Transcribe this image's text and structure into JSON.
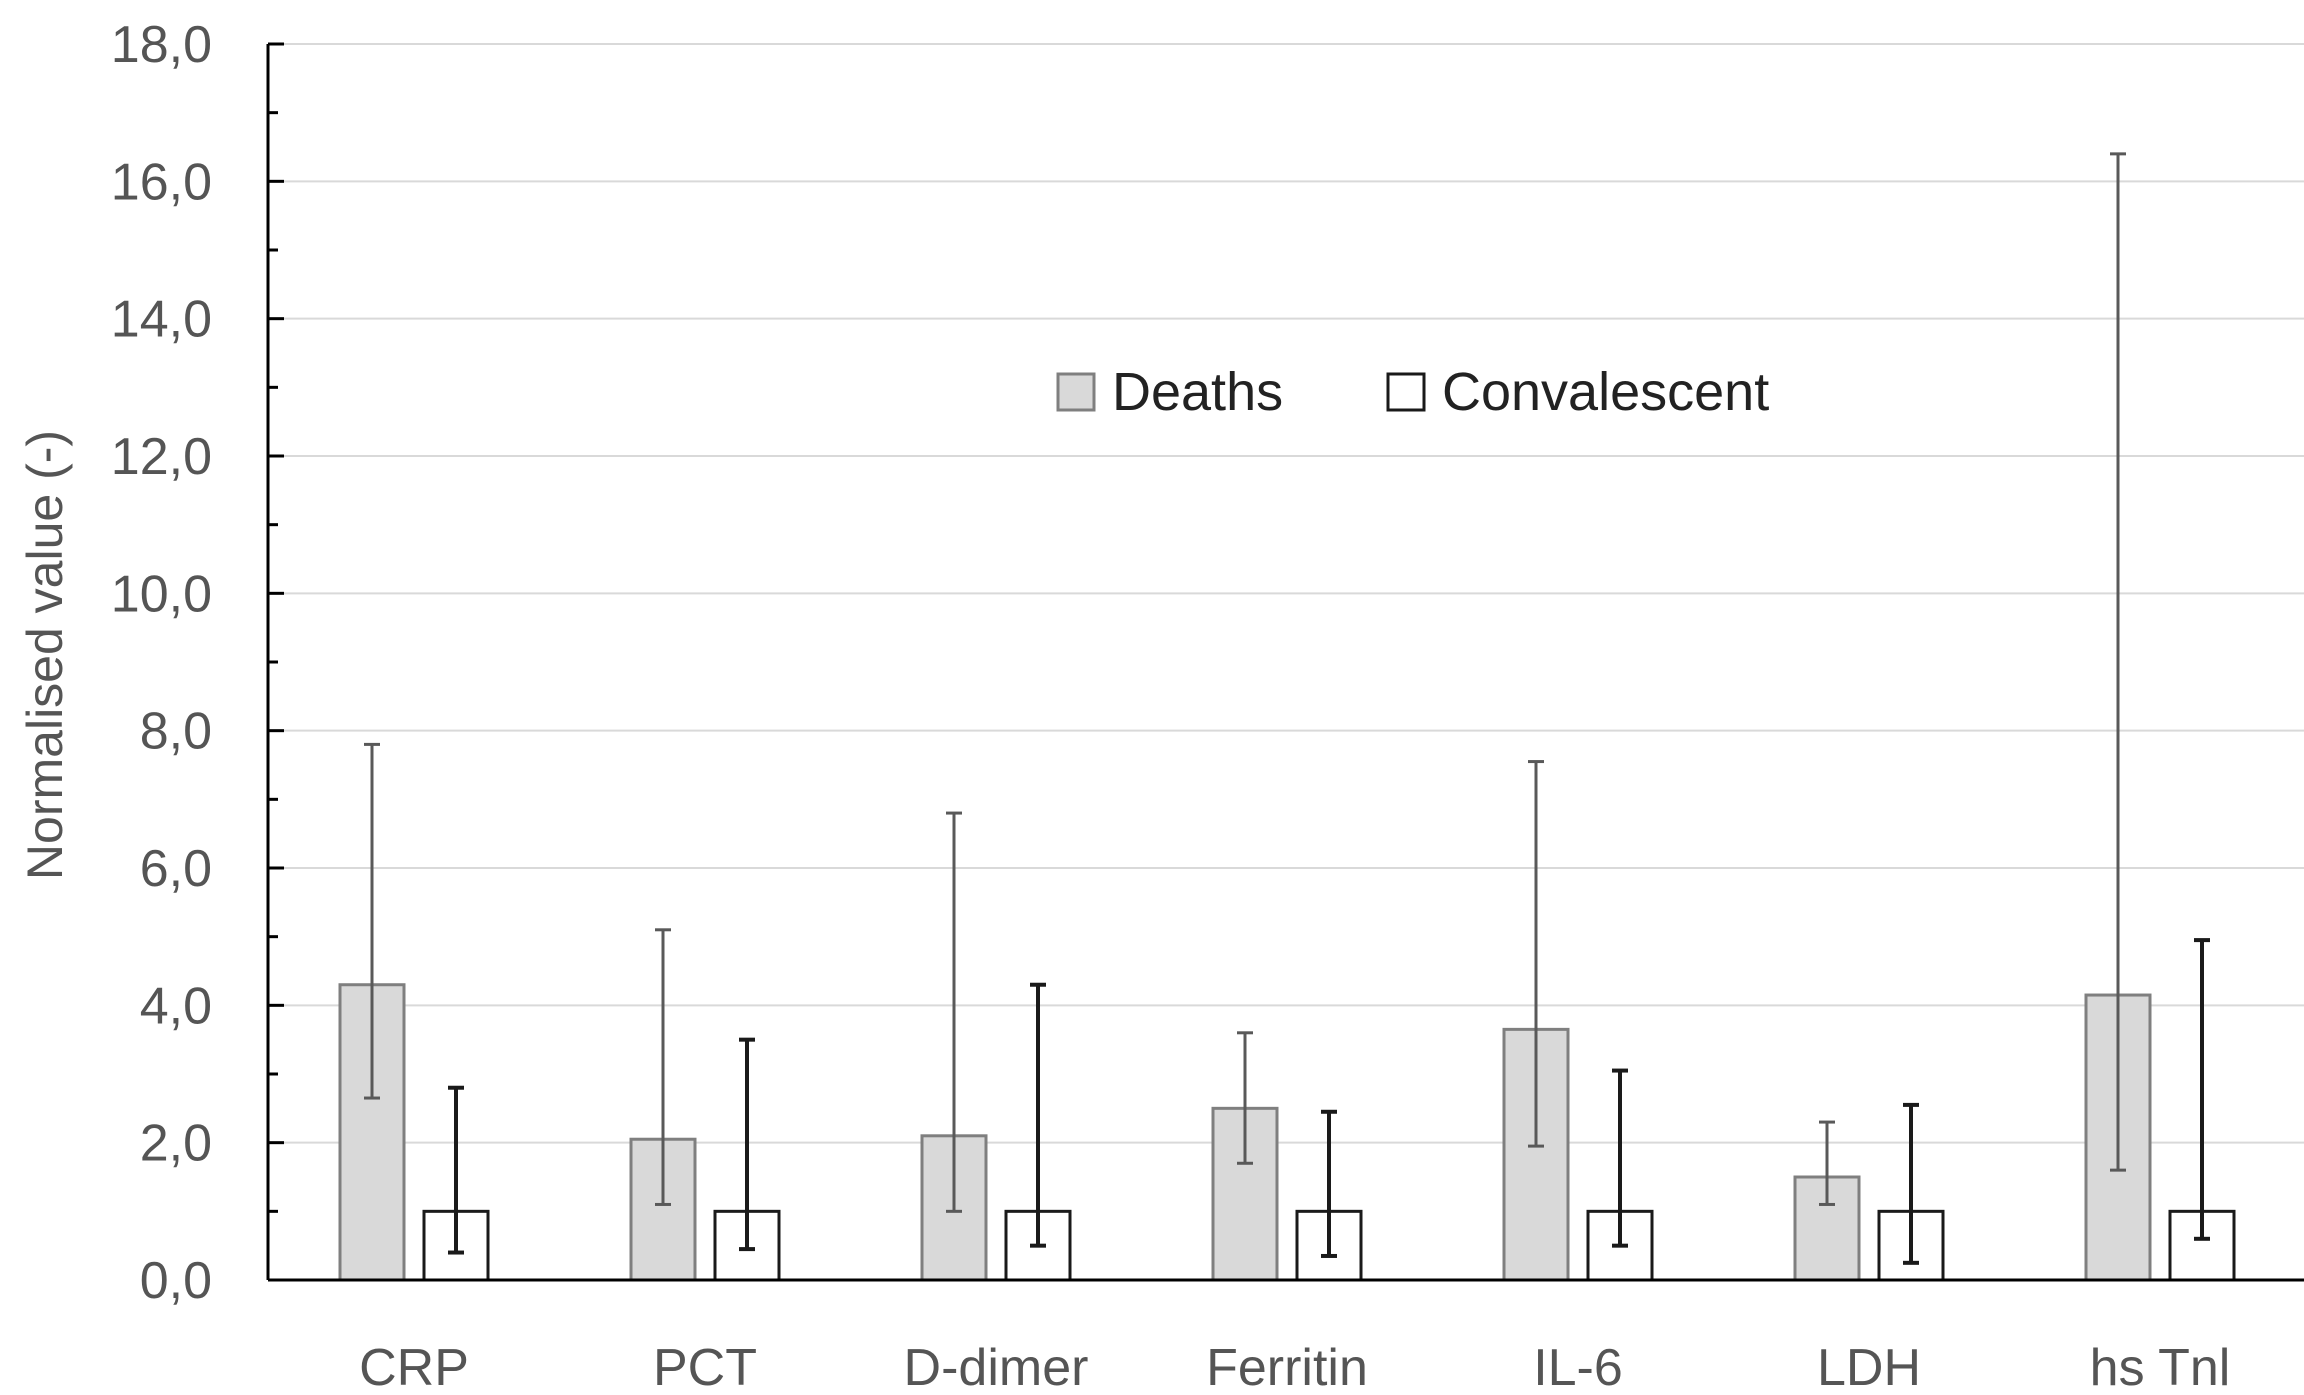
{
  "chart_data": {
    "type": "bar",
    "title": "",
    "xlabel": "",
    "ylabel": "Normalised value (-)",
    "ylim": [
      0,
      18
    ],
    "y_ticks": [
      "0,0",
      "2,0",
      "4,0",
      "6,0",
      "8,0",
      "10,0",
      "12,0",
      "14,0",
      "16,0",
      "18,0"
    ],
    "y_tick_values": [
      0,
      2,
      4,
      6,
      8,
      10,
      12,
      14,
      16,
      18
    ],
    "grid": true,
    "legend_position": "center",
    "categories": [
      "CRP",
      "PCT",
      "D-dimer",
      "Ferritin",
      "IL-6",
      "LDH",
      "hs Tnl"
    ],
    "series": [
      {
        "name": "Deaths",
        "color": "#d9d9d9",
        "error_color": "#595959",
        "values": [
          4.3,
          2.05,
          2.1,
          2.5,
          3.65,
          1.5,
          4.15
        ],
        "err_low": [
          2.65,
          1.1,
          1.0,
          1.7,
          1.95,
          1.1,
          1.6
        ],
        "err_high": [
          7.8,
          5.1,
          6.8,
          3.6,
          7.55,
          2.3,
          16.4
        ]
      },
      {
        "name": "Convalescent",
        "color": "#ffffff",
        "error_color": "#1a1a1a",
        "values": [
          1.0,
          1.0,
          1.0,
          1.0,
          1.0,
          1.0,
          1.0
        ],
        "err_low": [
          0.4,
          0.45,
          0.5,
          0.35,
          0.5,
          0.25,
          0.6
        ],
        "err_high": [
          2.8,
          3.5,
          4.3,
          2.45,
          3.05,
          2.55,
          4.95
        ]
      }
    ]
  }
}
